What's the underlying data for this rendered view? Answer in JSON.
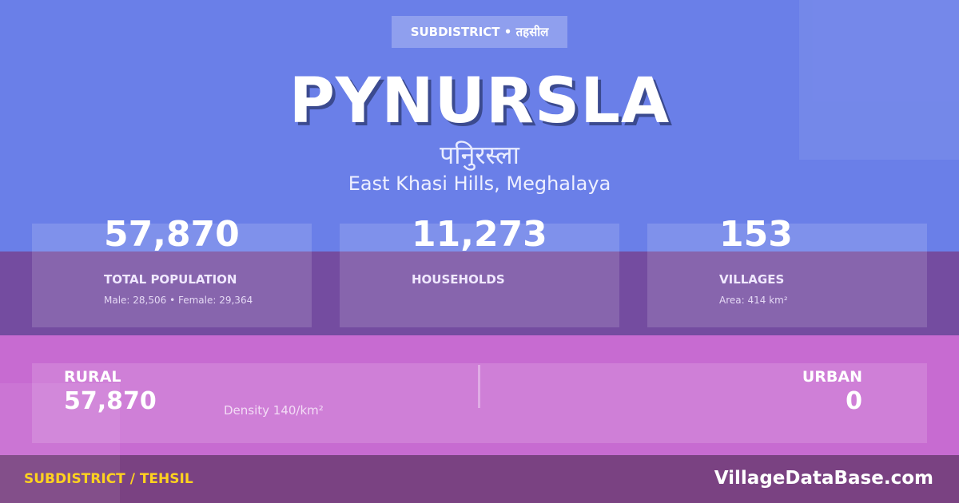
{
  "colors": {
    "top": "#6a7fe8",
    "band": "#744ca0",
    "pink": "#c76bd1",
    "footer": "#7a4282",
    "footer_label": "#ffd21f"
  },
  "badge": "SUBDISTRICT • तहसील",
  "title": "PYNURSLA",
  "title_hindi": "पनिुरस्ला",
  "location": "East Khasi Hills, Meghalaya",
  "stats": [
    {
      "value": "57,870",
      "label": "TOTAL POPULATION",
      "sub": "Male: 28,506 • Female: 29,364"
    },
    {
      "value": "11,273",
      "label": "HOUSEHOLDS",
      "sub": ""
    },
    {
      "value": "153",
      "label": "VILLAGES",
      "sub": "Area: 414 km²"
    }
  ],
  "rural": {
    "label": "RURAL",
    "value": "57,870"
  },
  "density": "Density 140/km²",
  "urban": {
    "label": "URBAN",
    "value": "0"
  },
  "footer": {
    "left": "SUBDISTRICT / TEHSIL",
    "right": "VillageDataBase.com"
  }
}
